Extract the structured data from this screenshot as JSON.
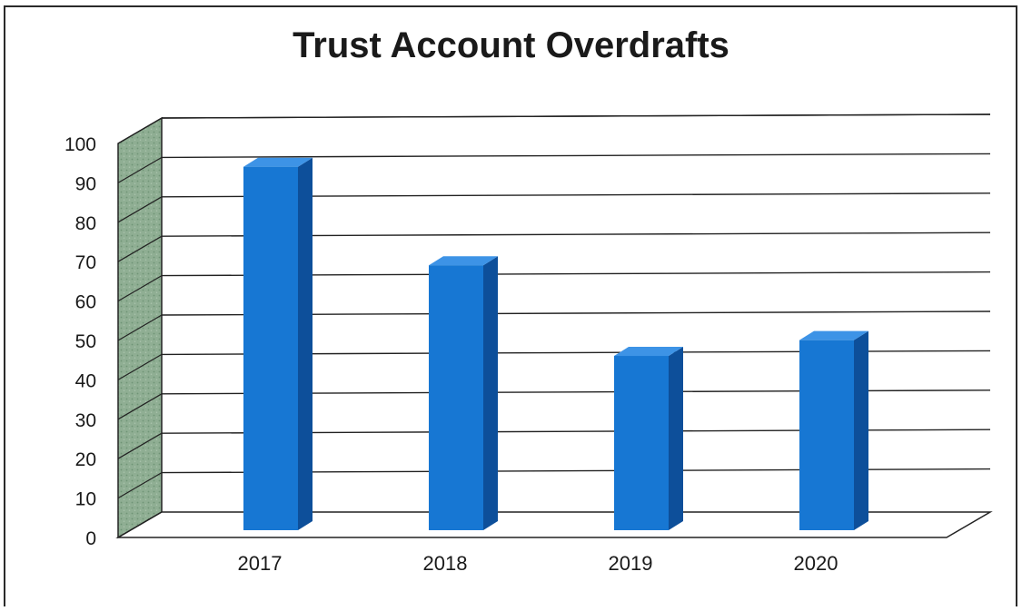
{
  "chart_data": {
    "type": "bar",
    "title": "Trust Account Overdrafts",
    "categories": [
      "2017",
      "2018",
      "2019",
      "2020"
    ],
    "values": [
      95,
      70,
      47,
      51
    ],
    "ylim": [
      0,
      100
    ],
    "yticks": [
      0,
      10,
      20,
      30,
      40,
      50,
      60,
      70,
      80,
      90,
      100
    ],
    "grid": true,
    "legend": "none",
    "colors": {
      "bar_front": "#1777d3",
      "bar_side": "#0d4f9a",
      "bar_top": "#3d93e6",
      "wall": "#8fae93"
    }
  }
}
